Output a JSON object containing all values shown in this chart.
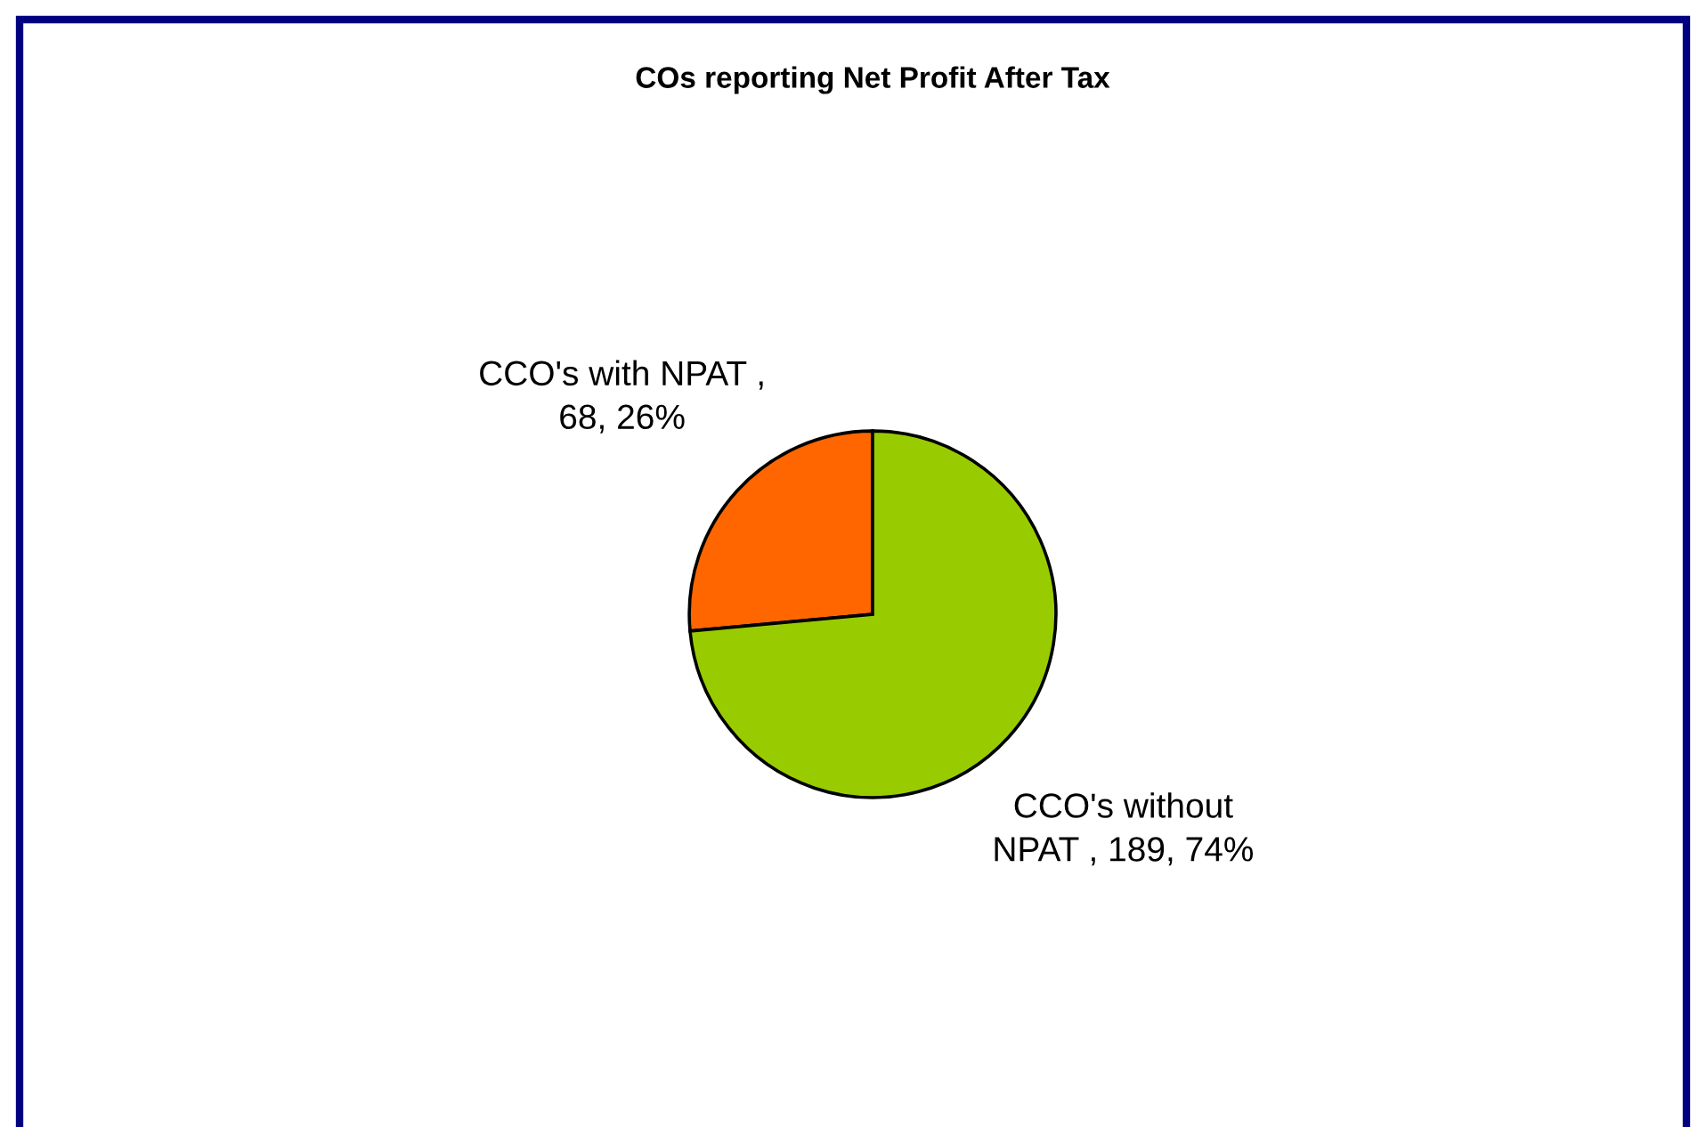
{
  "chart_data": {
    "type": "pie",
    "title": "COs reporting Net Profit After Tax",
    "categories": [
      "CCO's with NPAT",
      "CCO's without NPAT"
    ],
    "values": [
      68,
      189
    ],
    "colors": [
      "#ff6600",
      "#99cc00"
    ],
    "value_labels": [
      ", 68, 26%",
      ", 189, 74%"
    ]
  }
}
